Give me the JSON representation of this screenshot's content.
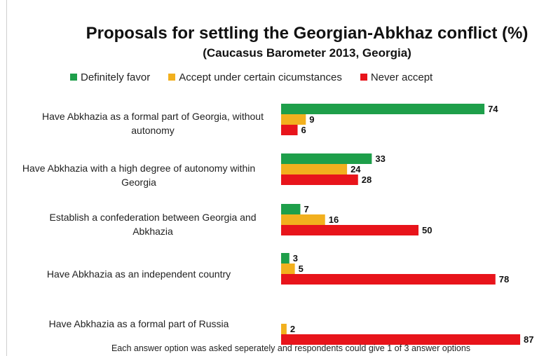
{
  "chart_data": {
    "type": "bar",
    "orientation": "horizontal",
    "title": "Proposals for settling the Georgian-Abkhaz conflict (%)",
    "subtitle": "(Caucasus Barometer 2013, Georgia)",
    "legend_position": "top",
    "grid": false,
    "xlim": [
      0,
      100
    ],
    "categories": [
      "Have Abkhazia as a formal part of Georgia, without autonomy",
      "Have Abkhazia with a high degree of autonomy within Georgia",
      "Establish a confederation between Georgia and Abkhazia",
      "Have Abkhazia as an independent country",
      "Have Abkhazia as a formal part of Russia"
    ],
    "series": [
      {
        "name": "Definitely favor",
        "color": "#1e9f4a",
        "values": [
          74,
          33,
          7,
          3,
          null
        ]
      },
      {
        "name": "Accept under certain cicumstances",
        "color": "#f2b01e",
        "values": [
          9,
          24,
          16,
          5,
          2
        ]
      },
      {
        "name": "Never accept",
        "color": "#e8141b",
        "values": [
          6,
          28,
          50,
          78,
          87
        ]
      }
    ],
    "note": "Each answer option was asked seperately and respondents could give 1 of 3 answer options"
  }
}
